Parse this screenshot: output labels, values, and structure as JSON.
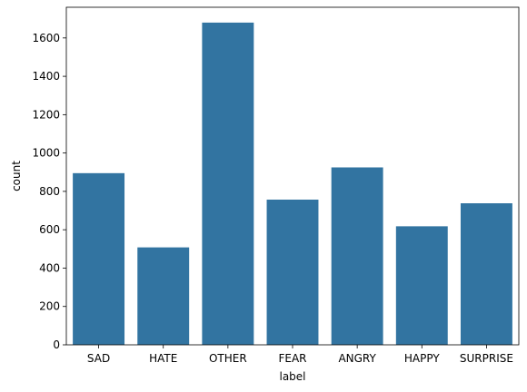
{
  "chart_data": {
    "type": "bar",
    "categories": [
      "SAD",
      "HATE",
      "OTHER",
      "FEAR",
      "ANGRY",
      "HAPPY",
      "SURPRISE"
    ],
    "values": [
      895,
      508,
      1680,
      757,
      925,
      618,
      738
    ],
    "xlabel": "label",
    "ylabel": "count",
    "ylim": [
      0,
      1760
    ],
    "yticks": [
      0,
      200,
      400,
      600,
      800,
      1000,
      1200,
      1400,
      1600
    ],
    "grid": false,
    "bar_color": "#3274a1"
  }
}
